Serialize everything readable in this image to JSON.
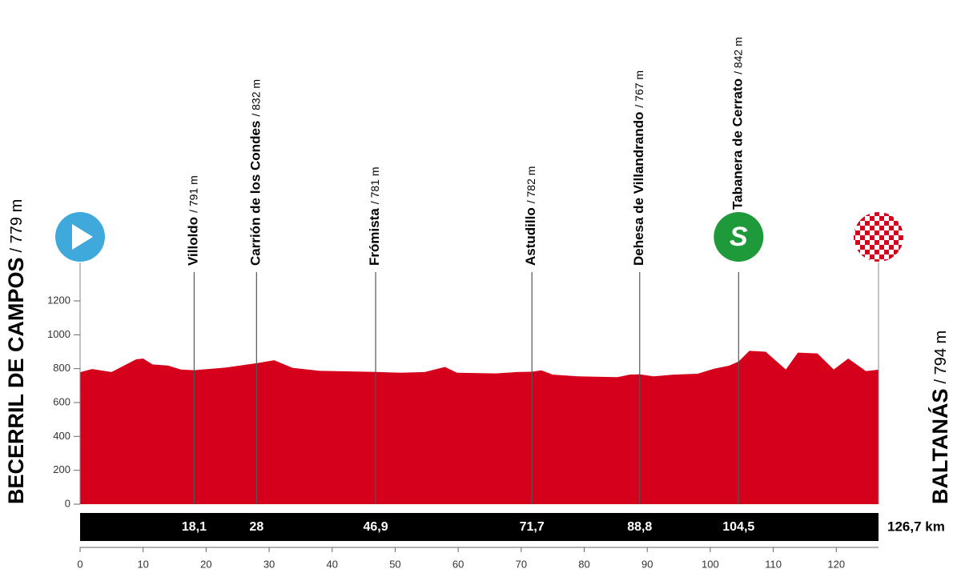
{
  "chart_data": {
    "type": "area",
    "color": "#d5001c",
    "x": [
      0,
      1.9,
      5,
      8.9,
      10,
      11.5,
      14,
      16,
      18.1,
      23,
      28,
      30.8,
      33.7,
      38,
      43,
      46.9,
      50.9,
      54.7,
      57.9,
      59.8,
      66,
      69.3,
      71.7,
      73.2,
      75,
      79,
      85.3,
      87.2,
      88.8,
      91,
      94.2,
      98,
      100.6,
      103,
      104.5,
      106.2,
      108.8,
      112,
      113.9,
      117,
      119.6,
      121.9,
      124.7,
      126.7
    ],
    "values": [
      779,
      798,
      780,
      855,
      860,
      825,
      818,
      795,
      791,
      806,
      832,
      850,
      805,
      787,
      784,
      781,
      776,
      780,
      810,
      776,
      772,
      780,
      782,
      790,
      765,
      755,
      750,
      765,
      767,
      755,
      765,
      770,
      800,
      818,
      842,
      905,
      900,
      795,
      895,
      890,
      795,
      860,
      785,
      794
    ],
    "xlim": [
      0,
      126.7
    ],
    "ylim": [
      0,
      1200
    ],
    "xticks": [
      0,
      10,
      20,
      30,
      40,
      50,
      60,
      70,
      80,
      90,
      100,
      110,
      120
    ],
    "yticks": [
      0,
      200,
      400,
      600,
      800,
      1000,
      1200
    ],
    "start": {
      "name": "BECERRIL DE CAMPOS",
      "altitude": "/ 779 m"
    },
    "finish": {
      "name": "BALTANÁS",
      "altitude": "/ 794 m",
      "distance": "126,7 km"
    },
    "waypoints": [
      {
        "name": "Villoldo",
        "altitude": "/ 791 m",
        "km": {
          "value": 18.1,
          "label": "18,1"
        }
      },
      {
        "name": "Carrión de los Condes",
        "altitude": "/ 832 m",
        "km": 28
      },
      {
        "name": "Frómista",
        "altitude": "/ 781 m",
        "km": {
          "value": 46.9,
          "label": "46,9"
        }
      },
      {
        "name": "Astudillo",
        "altitude": "/ 782 m",
        "km": {
          "value": 71.7,
          "label": "71,7"
        }
      },
      {
        "name": "Dehesa de Villandrando",
        "altitude": "/ 767 m",
        "km": {
          "value": 88.8,
          "label": "88,8"
        }
      },
      {
        "name": "Tabanera de Cerrato",
        "altitude": "/ 842 m",
        "km": {
          "value": 104.5,
          "label": "104,5"
        },
        "icon": "S"
      }
    ]
  }
}
